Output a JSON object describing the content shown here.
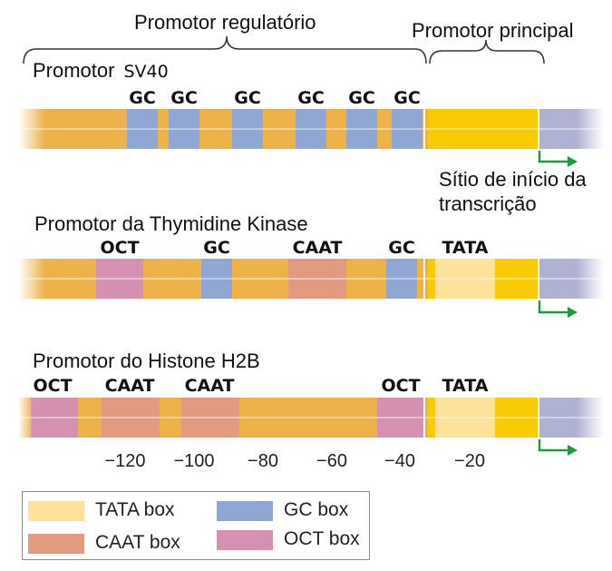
{
  "top_labels": {
    "regulatory": "Promotor regulatório",
    "core": "Promotor principal"
  },
  "tss_label": [
    "Sítio de início da",
    "transcrição"
  ],
  "colors": {
    "regulatory_fill": "#edb24a",
    "tata": "#fde29a",
    "core": "#f8cb05",
    "gc": "#8fa7d2",
    "caat": "#e29b80",
    "oct": "#d491b1",
    "downstream": "#b0b2d4",
    "arrow": "#1f9b3f"
  },
  "promoters": [
    {
      "name": "Promotor",
      "name_suffix": "SV40",
      "elements": [
        {
          "type": "GC",
          "label": "GC"
        },
        {
          "type": "GC",
          "label": "GC"
        },
        {
          "type": "GC",
          "label": "GC"
        },
        {
          "type": "GC",
          "label": "GC"
        },
        {
          "type": "GC",
          "label": "GC"
        },
        {
          "type": "GC",
          "label": "GC"
        }
      ]
    },
    {
      "name": "Promotor da Thymidine Kinase",
      "elements": [
        {
          "type": "OCT",
          "label": "OCT"
        },
        {
          "type": "GC",
          "label": "GC"
        },
        {
          "type": "CAAT",
          "label": "CAAT"
        },
        {
          "type": "GC",
          "label": "GC"
        },
        {
          "type": "TATA",
          "label": "TATA"
        }
      ]
    },
    {
      "name": "Promotor do Histone H2B",
      "elements": [
        {
          "type": "OCT",
          "label": "OCT"
        },
        {
          "type": "CAAT",
          "label": "CAAT"
        },
        {
          "type": "CAAT",
          "label": "CAAT"
        },
        {
          "type": "OCT",
          "label": "OCT"
        },
        {
          "type": "TATA",
          "label": "TATA"
        }
      ]
    }
  ],
  "position_ticks": [
    "−120",
    "−100",
    "−80",
    "−60",
    "−40",
    "−20"
  ],
  "legend": [
    {
      "label": "TATA box",
      "color": "#fde29a"
    },
    {
      "label": "GC box",
      "color": "#8fa7d2"
    },
    {
      "label": "CAAT box",
      "color": "#e29b80"
    },
    {
      "label": "OCT box",
      "color": "#d491b1"
    }
  ]
}
